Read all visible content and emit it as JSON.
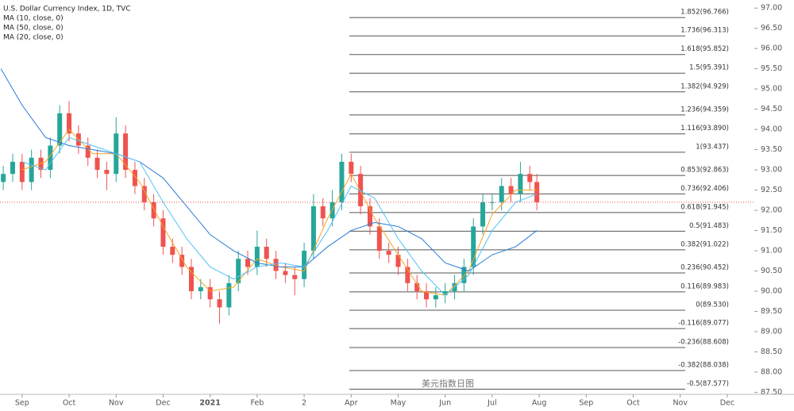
{
  "chart_data": {
    "type": "candlestick",
    "title": "U.S. Dollar Currency Index, 1D, TVC",
    "watermark": "美元指数日图",
    "up_color": "#26a69a",
    "down_color": "#ef5350",
    "x": [
      -0.4,
      -0.2,
      0,
      0.2,
      0.4,
      0.6,
      0.8,
      1.0,
      1.2,
      1.4,
      1.6,
      1.8,
      2.0,
      2.2,
      2.4,
      2.6,
      2.8,
      3.0,
      3.2,
      3.4,
      3.6,
      3.8,
      4.0,
      4.2,
      4.4,
      4.6,
      4.8,
      5.0,
      5.2,
      5.4,
      5.6,
      5.8,
      6.0,
      6.2,
      6.4,
      6.6,
      6.8,
      7.0,
      7.2,
      7.4,
      7.6,
      7.8,
      8.0,
      8.2,
      8.4,
      8.6,
      8.8,
      9.0,
      9.2,
      9.4,
      9.6,
      9.8,
      10.0,
      10.2,
      10.4,
      10.6,
      10.8,
      10.95
    ],
    "open": [
      92.7,
      92.9,
      93.2,
      92.7,
      93.3,
      93.0,
      93.6,
      94.4,
      93.9,
      93.6,
      93.3,
      93.0,
      92.9,
      93.9,
      93.0,
      92.6,
      92.2,
      91.8,
      91.1,
      90.9,
      90.6,
      90.0,
      90.1,
      89.8,
      89.6,
      90.2,
      90.8,
      90.6,
      91.1,
      90.8,
      90.5,
      90.4,
      90.3,
      91.0,
      92.1,
      91.8,
      92.2,
      93.2,
      92.9,
      92.1,
      91.6,
      91.0,
      90.9,
      90.6,
      90.2,
      90.0,
      89.8,
      89.9,
      90.0,
      90.2,
      90.6,
      91.6,
      92.2,
      92.2,
      92.6,
      92.4,
      92.9,
      92.7
    ],
    "high": [
      93.1,
      93.4,
      93.4,
      93.5,
      93.5,
      93.8,
      94.6,
      94.7,
      94.1,
      93.8,
      93.5,
      93.2,
      94.3,
      94.1,
      93.2,
      92.8,
      92.4,
      92.0,
      91.3,
      91.1,
      90.8,
      90.3,
      90.3,
      90.0,
      90.4,
      91.0,
      91.0,
      91.5,
      91.3,
      91.0,
      90.7,
      90.6,
      91.2,
      92.4,
      92.3,
      92.5,
      93.4,
      93.4,
      93.1,
      92.3,
      91.8,
      91.2,
      91.1,
      90.8,
      90.4,
      90.2,
      90.1,
      90.2,
      90.4,
      90.8,
      91.8,
      92.4,
      92.4,
      92.8,
      92.8,
      93.2,
      93.1,
      92.9
    ],
    "low": [
      92.5,
      92.7,
      92.5,
      92.5,
      92.8,
      92.8,
      93.4,
      93.7,
      93.4,
      93.1,
      92.8,
      92.5,
      92.7,
      92.8,
      92.4,
      92.0,
      91.6,
      90.9,
      90.7,
      90.4,
      89.8,
      89.8,
      89.6,
      89.2,
      89.4,
      90.0,
      90.4,
      90.4,
      90.6,
      90.3,
      90.2,
      89.9,
      90.1,
      90.8,
      91.6,
      91.6,
      92.0,
      92.7,
      91.9,
      91.4,
      90.8,
      90.7,
      90.4,
      90.0,
      89.8,
      89.6,
      89.6,
      89.7,
      89.8,
      90.0,
      90.4,
      91.4,
      92.0,
      92.0,
      92.2,
      92.2,
      92.5,
      92.0
    ],
    "close": [
      92.9,
      93.2,
      92.7,
      93.3,
      93.0,
      93.6,
      94.4,
      93.9,
      93.6,
      93.3,
      93.0,
      92.9,
      93.9,
      93.0,
      92.6,
      92.2,
      91.8,
      91.1,
      90.9,
      90.6,
      90.0,
      90.1,
      89.8,
      89.6,
      90.2,
      90.8,
      90.6,
      91.1,
      90.8,
      90.5,
      90.4,
      90.3,
      91.0,
      92.1,
      91.8,
      92.2,
      93.2,
      92.9,
      92.1,
      91.6,
      91.0,
      90.9,
      90.6,
      90.2,
      90.0,
      89.8,
      89.9,
      90.0,
      90.2,
      90.6,
      91.6,
      92.2,
      92.2,
      92.6,
      92.4,
      92.9,
      92.7,
      92.2
    ],
    "series": [
      {
        "name": "MA (10, close, 0)",
        "color": "#f5a623",
        "x": [
          0,
          0.5,
          1.0,
          1.5,
          2.0,
          2.5,
          3.0,
          3.5,
          4.0,
          4.5,
          5.0,
          5.5,
          6.0,
          6.5,
          7.0,
          7.5,
          8.0,
          8.5,
          9.0,
          9.5,
          10.0,
          10.5,
          10.95
        ],
        "values": [
          93.0,
          93.2,
          94.0,
          93.4,
          93.4,
          92.7,
          91.6,
          90.6,
          90.0,
          90.1,
          90.8,
          90.6,
          90.5,
          91.8,
          92.9,
          91.8,
          90.9,
          90.0,
          89.9,
          90.5,
          91.9,
          92.5,
          92.5
        ]
      },
      {
        "name": "MA (50, close, 0)",
        "color": "#2b7bd6",
        "x": [
          -0.45,
          0,
          0.5,
          1.0,
          1.5,
          2.0,
          2.5,
          3.0,
          3.5,
          4.0,
          4.5,
          5.0,
          5.5,
          6.0,
          6.5,
          7.0,
          7.5,
          8.0,
          8.5,
          9.0,
          9.5,
          10.0,
          10.5,
          10.95
        ],
        "values": [
          95.5,
          94.6,
          93.8,
          93.6,
          93.5,
          93.4,
          93.2,
          92.8,
          92.1,
          91.4,
          91.0,
          90.7,
          90.6,
          90.6,
          91.1,
          91.5,
          91.7,
          91.6,
          91.3,
          90.7,
          90.5,
          90.9,
          91.1,
          91.5
        ]
      },
      {
        "name": "MA (20, close, 0)",
        "color": "#4fc3f7",
        "x": [
          0,
          0.5,
          1.0,
          1.5,
          2.0,
          2.5,
          3.0,
          3.5,
          4.0,
          4.5,
          5.0,
          5.5,
          6.0,
          6.5,
          7.0,
          7.5,
          8.0,
          8.5,
          9.0,
          9.5,
          10.0,
          10.5,
          10.95
        ],
        "values": [
          93.2,
          93.0,
          93.8,
          93.6,
          93.4,
          93.2,
          92.2,
          91.3,
          90.6,
          90.3,
          90.6,
          90.7,
          90.6,
          91.5,
          92.6,
          92.3,
          91.3,
          90.5,
          89.9,
          90.4,
          91.5,
          92.2,
          92.4
        ]
      }
    ],
    "fib_levels": [
      {
        "value": 96.766,
        "label": "1.852(96.766)"
      },
      {
        "value": 96.313,
        "label": "1.736(96.313)"
      },
      {
        "value": 95.852,
        "label": "1.618(95.852)"
      },
      {
        "value": 95.391,
        "label": "1.5(95.391)"
      },
      {
        "value": 94.929,
        "label": "1.382(94.929)"
      },
      {
        "value": 94.359,
        "label": "1.236(94.359)"
      },
      {
        "value": 93.89,
        "label": "1.116(93.890)"
      },
      {
        "value": 93.437,
        "label": "1(93.437)"
      },
      {
        "value": 92.863,
        "label": "0.853(92.863)"
      },
      {
        "value": 92.406,
        "label": "0.736(92.406)"
      },
      {
        "value": 91.945,
        "label": "0.618(91.945)"
      },
      {
        "value": 91.483,
        "label": "0.5(91.483)"
      },
      {
        "value": 91.022,
        "label": "0.382(91.022)"
      },
      {
        "value": 90.452,
        "label": "0.236(90.452)"
      },
      {
        "value": 89.983,
        "label": "0.116(89.983)"
      },
      {
        "value": 89.53,
        "label": "0(89.530)"
      },
      {
        "value": 89.077,
        "label": "-0.116(89.077)"
      },
      {
        "value": 88.608,
        "label": "-0.236(88.608)"
      },
      {
        "value": 88.038,
        "label": "-0.382(88.038)"
      },
      {
        "value": 87.577,
        "label": "-0.5(87.577)"
      }
    ],
    "xlim": [
      -0.47,
      16.42
    ],
    "xticks": [
      {
        "value": 0,
        "label": "Sep"
      },
      {
        "value": 1,
        "label": "Oct"
      },
      {
        "value": 2,
        "label": "Nov"
      },
      {
        "value": 3,
        "label": "Dec"
      },
      {
        "value": 4,
        "label": "2021"
      },
      {
        "value": 5,
        "label": "Feb"
      },
      {
        "value": 6,
        "label": "2"
      },
      {
        "value": 7,
        "label": "Apr"
      },
      {
        "value": 8,
        "label": "May"
      },
      {
        "value": 9,
        "label": "Jun"
      },
      {
        "value": 10,
        "label": "Jul"
      },
      {
        "value": 11,
        "label": "Aug"
      },
      {
        "value": 12,
        "label": "Sep"
      },
      {
        "value": 13,
        "label": "Oct"
      },
      {
        "value": 14,
        "label": "Nov"
      },
      {
        "value": 15,
        "label": "Dec"
      }
    ],
    "ylim": [
      87.45,
      97.2
    ],
    "yticks": [
      {
        "value": 87.5,
        "label": "87.50"
      },
      {
        "value": 88,
        "label": "88.00"
      },
      {
        "value": 88.5,
        "label": "88.50"
      },
      {
        "value": 89,
        "label": "89.00"
      },
      {
        "value": 89.5,
        "label": "89.50"
      },
      {
        "value": 90,
        "label": "90.00"
      },
      {
        "value": 90.5,
        "label": "90.50"
      },
      {
        "value": 91,
        "label": "91.00"
      },
      {
        "value": 91.5,
        "label": "91.50"
      },
      {
        "value": 92,
        "label": "92.00"
      },
      {
        "value": 92.5,
        "label": "92.50"
      },
      {
        "value": 93,
        "label": "93.00"
      },
      {
        "value": 93.5,
        "label": "93.50"
      },
      {
        "value": 94,
        "label": "94.00"
      },
      {
        "value": 94.5,
        "label": "94.50"
      },
      {
        "value": 95,
        "label": "95.00"
      },
      {
        "value": 95.5,
        "label": "95.50"
      },
      {
        "value": 96,
        "label": "96.00"
      },
      {
        "value": 96.5,
        "label": "96.50"
      },
      {
        "value": 97,
        "label": "97.00"
      }
    ]
  }
}
